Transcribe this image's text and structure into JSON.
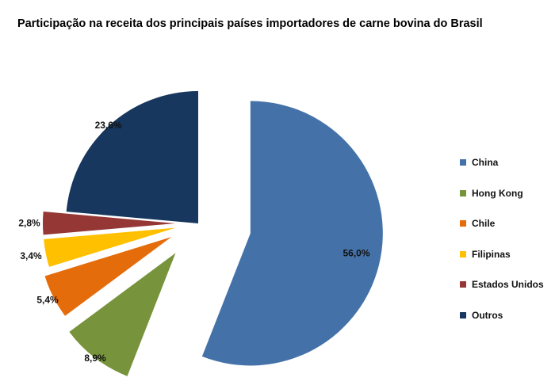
{
  "chart_data": {
    "type": "pie",
    "title": "Participação na receita dos principais países importadores de carne bovina do Brasil",
    "legend_position": "right",
    "slices": [
      {
        "name": "China",
        "value": 56.0,
        "label": "56,0%",
        "color": "#4472A8"
      },
      {
        "name": "Hong Kong",
        "value": 8.9,
        "label": "8,9%",
        "color": "#77933C"
      },
      {
        "name": "Chile",
        "value": 5.4,
        "label": "5,4%",
        "color": "#E46C0A"
      },
      {
        "name": "Filipinas",
        "value": 3.4,
        "label": "3,4%",
        "color": "#FFC000"
      },
      {
        "name": "Estados Unidos",
        "value": 2.8,
        "label": "2,8%",
        "color": "#953735"
      },
      {
        "name": "Outros",
        "value": 23.6,
        "label": "23,6%",
        "color": "#17375E"
      }
    ]
  }
}
